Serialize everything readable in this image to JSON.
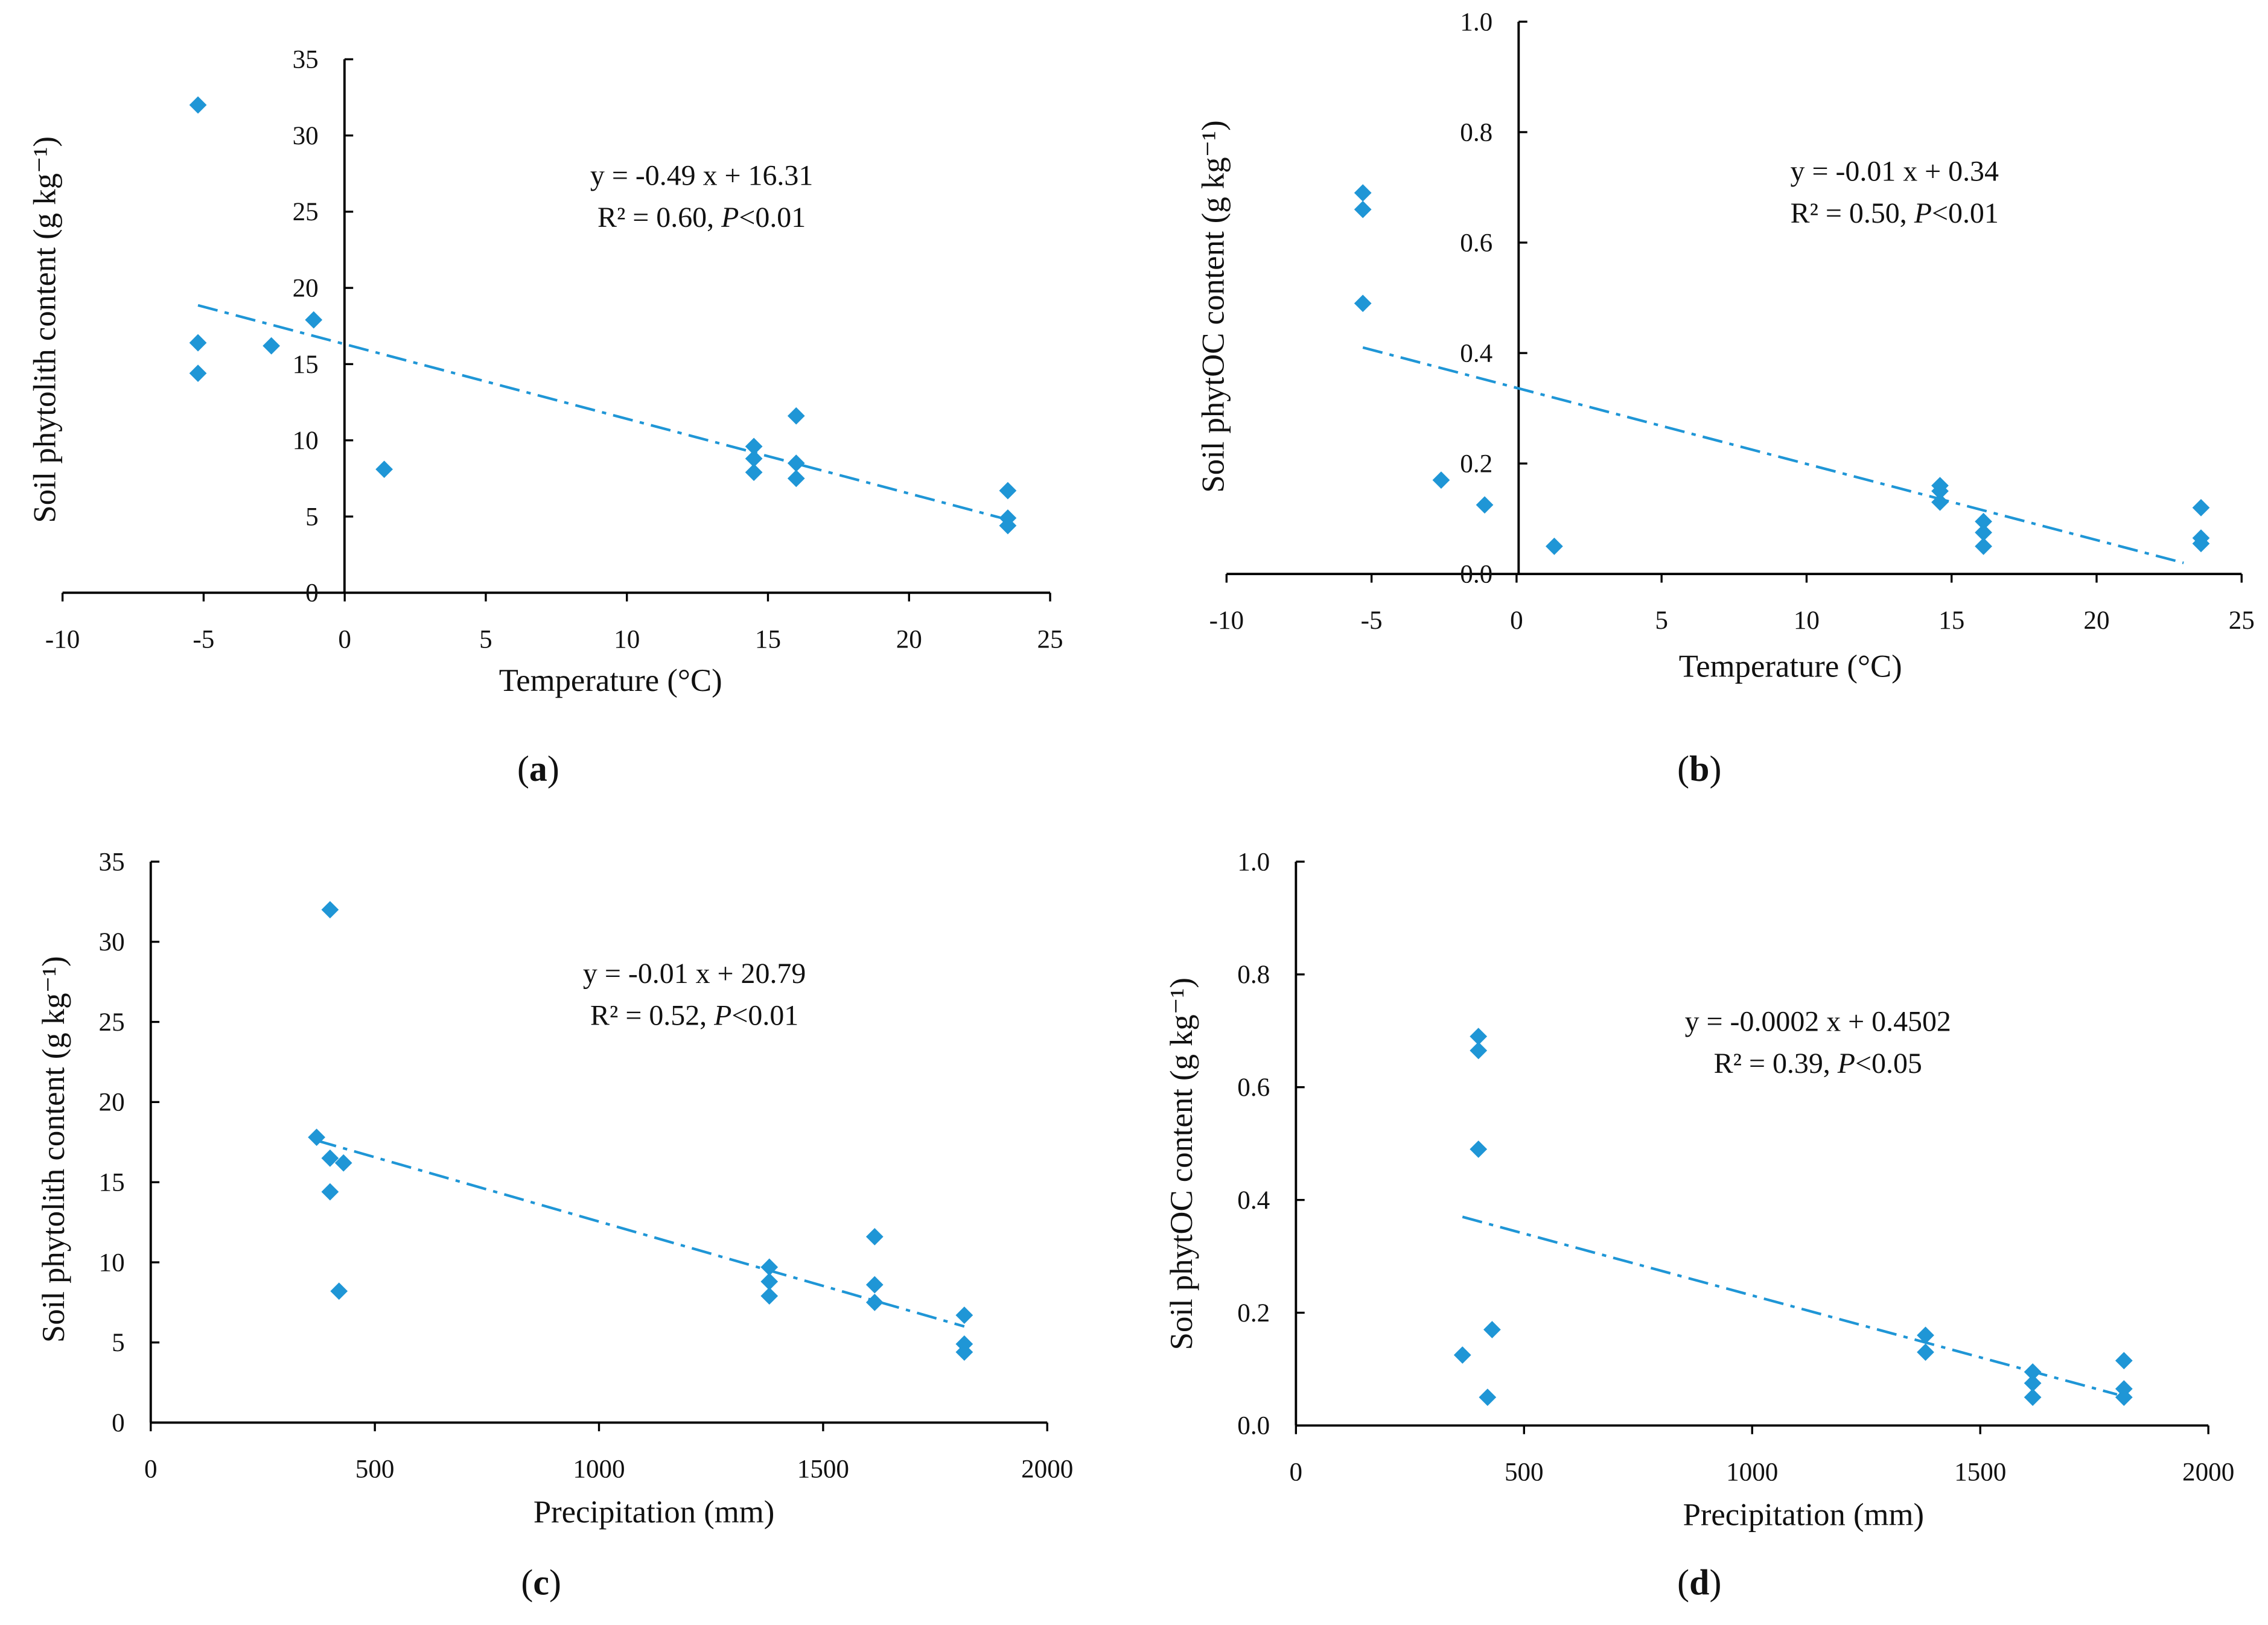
{
  "style": {
    "marker_color": "#1f96d6",
    "axis_color": "#000000"
  },
  "chart_data": [
    {
      "id": "a",
      "type": "scatter",
      "caption_letter": "a",
      "xlabel": "Temperature (°C)",
      "ylabel": "Soil phytolith content (g kg⁻¹)",
      "xlim": [
        -10,
        25
      ],
      "ylim": [
        0,
        35
      ],
      "xticks": [
        -10,
        -5,
        0,
        5,
        10,
        15,
        20,
        25
      ],
      "yticks": [
        0,
        5,
        10,
        15,
        20,
        25,
        30,
        35
      ],
      "ytick_labels": [
        "0",
        "5",
        "10",
        "15",
        "20",
        "25",
        "30",
        "35"
      ],
      "points": [
        [
          -5.2,
          32
        ],
        [
          -5.2,
          16.4
        ],
        [
          -5.2,
          14.4
        ],
        [
          -2.6,
          16.2
        ],
        [
          -1.1,
          17.9
        ],
        [
          1.4,
          8.1
        ],
        [
          14.5,
          9.6
        ],
        [
          14.5,
          8.8
        ],
        [
          14.5,
          7.9
        ],
        [
          16,
          11.6
        ],
        [
          16,
          8.5
        ],
        [
          16,
          7.5
        ],
        [
          23.5,
          6.7
        ],
        [
          23.5,
          4.9
        ],
        [
          23.5,
          4.4
        ]
      ],
      "trendline": {
        "x": [
          -5.2,
          23.5
        ],
        "slope": -0.49,
        "intercept": 16.31
      },
      "equation": "y = -0.49 x + 16.31",
      "r2_text": "R² = 0.60, ",
      "p_label": "P",
      "p_text": "<0.01"
    },
    {
      "id": "b",
      "type": "scatter",
      "caption_letter": "b",
      "xlabel": "Temperature (°C)",
      "ylabel": "Soil phytOC content (g kg⁻¹)",
      "xlim": [
        -10,
        25
      ],
      "ylim": [
        0,
        1.0
      ],
      "xticks": [
        -10,
        -5,
        0,
        5,
        10,
        15,
        20,
        25
      ],
      "yticks": [
        0,
        0.2,
        0.4,
        0.6,
        0.8,
        1.0
      ],
      "ytick_labels": [
        "0.0",
        "0.2",
        "0.4",
        "0.6",
        "0.8",
        "1.0"
      ],
      "points": [
        [
          -5.3,
          0.69
        ],
        [
          -5.3,
          0.66
        ],
        [
          -5.3,
          0.49
        ],
        [
          -2.6,
          0.17
        ],
        [
          -1.1,
          0.125
        ],
        [
          1.3,
          0.05
        ],
        [
          14.6,
          0.16
        ],
        [
          14.6,
          0.15
        ],
        [
          14.6,
          0.13
        ],
        [
          16.1,
          0.095
        ],
        [
          16.1,
          0.075
        ],
        [
          16.1,
          0.05
        ],
        [
          23.6,
          0.12
        ],
        [
          23.6,
          0.065
        ],
        [
          23.6,
          0.055
        ]
      ],
      "trendline": {
        "x": [
          -5.3,
          23.0
        ],
        "y": [
          0.41,
          0.02
        ]
      },
      "equation": "y = -0.01 x + 0.34",
      "r2_text": "R² = 0.50, ",
      "p_label": "P",
      "p_text": "<0.01"
    },
    {
      "id": "c",
      "type": "scatter",
      "caption_letter": "c",
      "xlabel": "Precipitation (mm)",
      "ylabel": "Soil phytolith content (g kg⁻¹)",
      "xlim": [
        0,
        2000
      ],
      "ylim": [
        0,
        35
      ],
      "xticks": [
        0,
        500,
        1000,
        1500,
        2000
      ],
      "yticks": [
        0,
        5,
        10,
        15,
        20,
        25,
        30,
        35
      ],
      "ytick_labels": [
        "0",
        "5",
        "10",
        "15",
        "20",
        "25",
        "30",
        "35"
      ],
      "points": [
        [
          370,
          17.8
        ],
        [
          400,
          32
        ],
        [
          400,
          16.5
        ],
        [
          400,
          14.4
        ],
        [
          430,
          16.2
        ],
        [
          420,
          8.2
        ],
        [
          1380,
          9.7
        ],
        [
          1380,
          8.8
        ],
        [
          1380,
          7.9
        ],
        [
          1615,
          11.6
        ],
        [
          1615,
          8.6
        ],
        [
          1615,
          7.5
        ],
        [
          1815,
          6.7
        ],
        [
          1815,
          4.9
        ],
        [
          1815,
          4.4
        ]
      ],
      "trendline": {
        "x": [
          370,
          1815
        ],
        "y": [
          17.6,
          6.0
        ]
      },
      "equation": "y = -0.01 x + 20.79",
      "r2_text": "R² = 0.52, ",
      "p_label": "P",
      "p_text": "<0.01"
    },
    {
      "id": "d",
      "type": "scatter",
      "caption_letter": "d",
      "xlabel": "Precipitation (mm)",
      "ylabel": "Soil phytOC content (g kg⁻¹)",
      "xlim": [
        0,
        2000
      ],
      "ylim": [
        0,
        1.0
      ],
      "xticks": [
        0,
        500,
        1000,
        1500,
        2000
      ],
      "yticks": [
        0,
        0.2,
        0.4,
        0.6,
        0.8,
        1.0
      ],
      "ytick_labels": [
        "0.0",
        "0.2",
        "0.4",
        "0.6",
        "0.8",
        "1.0"
      ],
      "points": [
        [
          365,
          0.125
        ],
        [
          400,
          0.69
        ],
        [
          400,
          0.665
        ],
        [
          400,
          0.49
        ],
        [
          430,
          0.17
        ],
        [
          420,
          0.05
        ],
        [
          1380,
          0.16
        ],
        [
          1380,
          0.13
        ],
        [
          1615,
          0.095
        ],
        [
          1615,
          0.075
        ],
        [
          1615,
          0.05
        ],
        [
          1815,
          0.115
        ],
        [
          1815,
          0.065
        ],
        [
          1815,
          0.05
        ]
      ],
      "trendline": {
        "x": [
          365,
          1800
        ],
        "y": [
          0.37,
          0.055
        ]
      },
      "equation": "y = -0.0002 x + 0.4502",
      "r2_text": "R² = 0.39, ",
      "p_label": "P",
      "p_text": "<0.05"
    }
  ]
}
